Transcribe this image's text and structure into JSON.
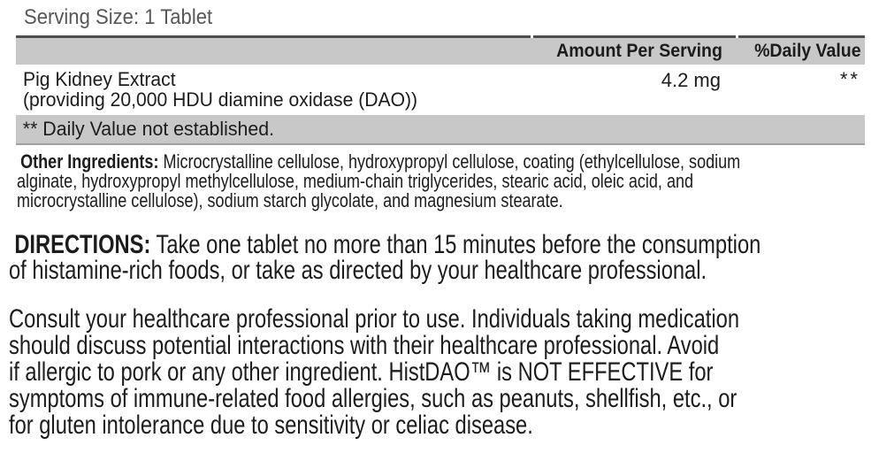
{
  "facts": {
    "serving_size": "Serving Size: 1 Tablet",
    "header": {
      "amount": "Amount Per Serving",
      "daily_value": "%Daily Value"
    },
    "rows": [
      {
        "name_line1": "Pig Kidney Extract",
        "name_line2": "(providing 20,000 HDU diamine oxidase (DAO))",
        "amount": "4.2 mg",
        "daily_value": "**"
      }
    ],
    "footnote": "** Daily Value not established."
  },
  "other_ingredients": {
    "bold": "Other Ingredients:",
    "line1_rest": " Microcrystalline cellulose, hydroxypropyl cellulose, coating (ethylcellulose, sodium",
    "line2": "alginate, hydroxypropyl methylcellulose, medium-chain triglycerides, stearic acid, oleic acid, and",
    "line3": "microcrystalline cellulose), sodium starch glycolate, and magnesium stearate."
  },
  "directions": {
    "bold": "DIRECTIONS:",
    "line1_rest": " Take one tablet no more than 15 minutes before the consumption",
    "line2": "of histamine-rich foods, or take as directed by your healthcare professional."
  },
  "consult": {
    "line1": "Consult your healthcare professional prior to use. Individuals taking medication",
    "line2": "should discuss potential interactions with their healthcare professional. Avoid",
    "line3": "if allergic to pork or any other ingredient. HistDAO™ is NOT EFFECTIVE for",
    "line4": "symptoms of immune-related food allergies, such as peanuts, shellfish, etc., or",
    "line5": "for gluten intolerance due to sensitivity or celiac disease."
  },
  "colors": {
    "bar_gray": "#c8c8c8",
    "rule_dark": "#4e4e50",
    "rule_mid": "#9fa1a3",
    "text_muted": "#57575a",
    "text_main": "#1c1c1c"
  }
}
